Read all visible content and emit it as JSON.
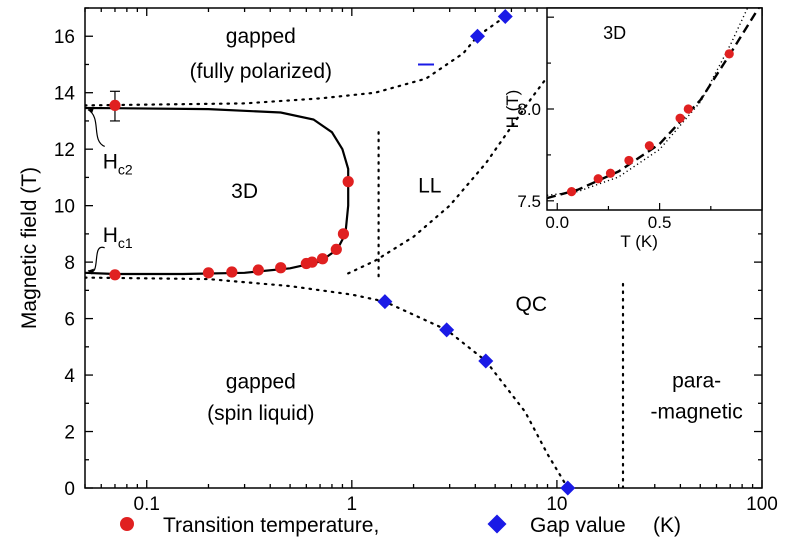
{
  "chart_data": [
    {
      "type": "scatter",
      "title": "",
      "xlabel": "",
      "ylabel": "Magnetic field (T)",
      "xscale": "log",
      "xlim": [
        0.05,
        100
      ],
      "ylim": [
        0,
        17
      ],
      "x_ticks": [
        {
          "value": 0.1,
          "label": "0.1"
        },
        {
          "value": 1,
          "label": "1"
        },
        {
          "value": 10,
          "label": "10"
        },
        {
          "value": 100,
          "label": "100"
        }
      ],
      "y_ticks": [
        {
          "value": 0,
          "label": "0"
        },
        {
          "value": 2,
          "label": "2"
        },
        {
          "value": 4,
          "label": "4"
        },
        {
          "value": 6,
          "label": "6"
        },
        {
          "value": 8,
          "label": "8"
        },
        {
          "value": 10,
          "label": "10"
        },
        {
          "value": 12,
          "label": "12"
        },
        {
          "value": 14,
          "label": "14"
        },
        {
          "value": 16,
          "label": "16"
        }
      ],
      "legend": {
        "placement": "bottom",
        "items": [
          {
            "marker": "circle",
            "color": "#e02020",
            "label": "Transition temperature,"
          },
          {
            "marker": "diamond",
            "color": "#1a1ae6",
            "label": "Gap value",
            "unit": "(K)"
          }
        ]
      },
      "series": [
        {
          "name": "Transition temperature,",
          "marker": "circle",
          "color": "#e02020",
          "points": [
            [
              0.07,
              13.55
            ],
            [
              0.07,
              7.55
            ],
            [
              0.2,
              7.62
            ],
            [
              0.26,
              7.65
            ],
            [
              0.35,
              7.72
            ],
            [
              0.45,
              7.8
            ],
            [
              0.6,
              7.95
            ],
            [
              0.64,
              8.0
            ],
            [
              0.72,
              8.12
            ],
            [
              0.84,
              8.45
            ],
            [
              0.91,
              9.0
            ],
            [
              0.96,
              10.85
            ]
          ],
          "error_bar": {
            "x": 0.07,
            "y": 13.55,
            "low": 13.0,
            "high": 14.05
          }
        },
        {
          "name": "Gap value",
          "marker": "diamond",
          "color": "#1a1ae6",
          "points": [
            [
              1.45,
              6.6
            ],
            [
              2.9,
              5.6
            ],
            [
              4.5,
              4.5
            ],
            [
              11.3,
              0.0
            ],
            [
              4.1,
              16.0
            ],
            [
              5.6,
              16.7
            ]
          ],
          "dash_marks": [
            [
              2.3,
              15.0
            ]
          ]
        }
      ],
      "curves": [
        {
          "kind": "solid",
          "description": "phase boundary of 3D order",
          "points": [
            [
              0.05,
              7.62
            ],
            [
              0.07,
              7.58
            ],
            [
              0.15,
              7.58
            ],
            [
              0.3,
              7.62
            ],
            [
              0.5,
              7.78
            ],
            [
              0.7,
              8.02
            ],
            [
              0.85,
              8.45
            ],
            [
              0.93,
              9.0
            ],
            [
              0.96,
              10.0
            ],
            [
              0.96,
              11.3
            ],
            [
              0.9,
              12.0
            ],
            [
              0.8,
              12.6
            ],
            [
              0.65,
              13.05
            ],
            [
              0.45,
              13.3
            ],
            [
              0.2,
              13.42
            ],
            [
              0.07,
              13.45
            ],
            [
              0.05,
              13.46
            ]
          ]
        },
        {
          "kind": "dotted",
          "points": [
            [
              0.05,
              7.45
            ],
            [
              0.2,
              7.4
            ],
            [
              0.5,
              7.15
            ],
            [
              1.0,
              6.85
            ],
            [
              1.45,
              6.6
            ],
            [
              2.9,
              5.6
            ],
            [
              4.5,
              4.5
            ],
            [
              7.0,
              2.7
            ],
            [
              9.0,
              1.2
            ],
            [
              11.3,
              0.0
            ]
          ]
        },
        {
          "kind": "dotted",
          "points": [
            [
              0.05,
              13.55
            ],
            [
              0.3,
              13.62
            ],
            [
              0.7,
              13.8
            ],
            [
              1.3,
              14.0
            ],
            [
              2.3,
              14.5
            ],
            [
              3.5,
              15.4
            ],
            [
              4.1,
              16.0
            ],
            [
              5.6,
              16.7
            ]
          ]
        },
        {
          "kind": "dotted",
          "points": [
            [
              0.96,
              7.6
            ],
            [
              1.3,
              8.05
            ],
            [
              2.0,
              8.9
            ],
            [
              3.0,
              10.0
            ],
            [
              4.5,
              11.5
            ],
            [
              7.5,
              13.8
            ],
            [
              11.5,
              15.6
            ],
            [
              13.5,
              17.0
            ]
          ]
        },
        {
          "kind": "dotted",
          "points": [
            [
              1.35,
              7.5
            ],
            [
              1.35,
              12.8
            ]
          ]
        },
        {
          "kind": "dotted",
          "points": [
            [
              21.0,
              0.0
            ],
            [
              21.0,
              7.4
            ]
          ]
        }
      ],
      "annotations": [
        {
          "text": "gapped",
          "x": 0.36,
          "y": 16.05
        },
        {
          "text": "(fully polarized)",
          "x": 0.36,
          "y": 14.8
        },
        {
          "text": "3D",
          "x": 0.3,
          "y": 10.55
        },
        {
          "text": "LL",
          "x": 2.4,
          "y": 10.75
        },
        {
          "text": "QC",
          "x": 7.5,
          "y": 6.55
        },
        {
          "text": "gapped",
          "x": 0.36,
          "y": 3.8
        },
        {
          "text": "(spin liquid)",
          "x": 0.36,
          "y": 2.7
        },
        {
          "text": "para-",
          "x": 48,
          "y": 3.85
        },
        {
          "text": "-magnetic",
          "x": 48,
          "y": 2.75
        }
      ],
      "arrow_labels": [
        {
          "label": "H",
          "subscript": "c2",
          "x": 0.061,
          "y": 11.6,
          "arrow_to": [
            0.05,
            13.4
          ]
        },
        {
          "label": "H",
          "subscript": "c1",
          "x": 0.061,
          "y": 9.0,
          "arrow_to": [
            0.05,
            7.7
          ]
        }
      ]
    },
    {
      "type": "scatter",
      "title": "3D",
      "xlabel": "T (K)",
      "ylabel": "H (T)",
      "xlim": [
        -0.05,
        1.0
      ],
      "ylim": [
        7.45,
        8.55
      ],
      "x_ticks": [
        {
          "value": 0.0,
          "label": "0.0"
        },
        {
          "value": 0.5,
          "label": "0.5"
        }
      ],
      "y_ticks": [
        {
          "value": 7.5,
          "label": "7.5"
        },
        {
          "value": 8.0,
          "label": "8.0"
        }
      ],
      "series": [
        {
          "name": "Transition temperature,",
          "marker": "circle",
          "color": "#e02020",
          "points": [
            [
              0.07,
              7.55
            ],
            [
              0.2,
              7.62
            ],
            [
              0.26,
              7.65
            ],
            [
              0.35,
              7.72
            ],
            [
              0.45,
              7.8
            ],
            [
              0.6,
              7.95
            ],
            [
              0.64,
              8.0
            ],
            [
              0.84,
              8.3
            ]
          ]
        }
      ],
      "curves": [
        {
          "kind": "dashed",
          "points": [
            [
              -0.05,
              7.515
            ],
            [
              0.1,
              7.56
            ],
            [
              0.3,
              7.66
            ],
            [
              0.5,
              7.81
            ],
            [
              0.7,
              8.05
            ],
            [
              0.85,
              8.31
            ],
            [
              1.0,
              8.58
            ]
          ]
        },
        {
          "kind": "dotted",
          "points": [
            [
              -0.05,
              7.53
            ],
            [
              0.1,
              7.55
            ],
            [
              0.3,
              7.63
            ],
            [
              0.5,
              7.78
            ],
            [
              0.7,
              8.04
            ],
            [
              0.85,
              8.36
            ],
            [
              0.95,
              8.6
            ]
          ]
        }
      ]
    }
  ]
}
